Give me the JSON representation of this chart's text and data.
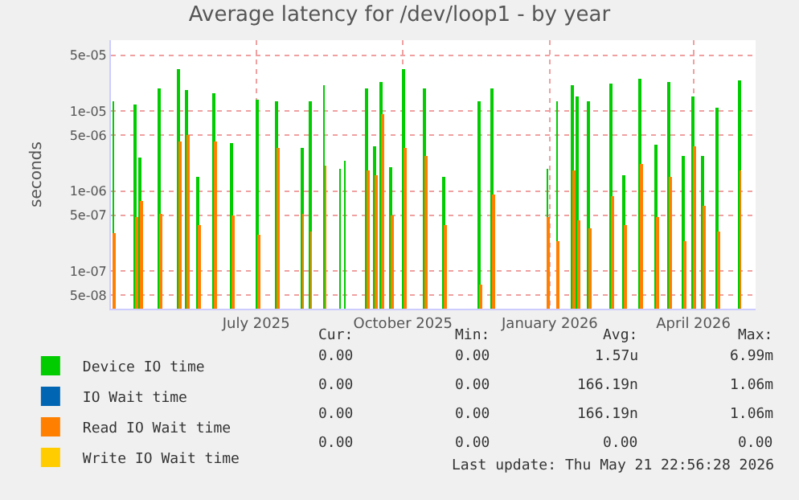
{
  "chart_data": {
    "type": "bar",
    "title": "Average latency for /dev/loop1 - by year",
    "ylabel": "seconds",
    "x": [
      "2025-04-03",
      "2025-04-17",
      "2025-04-20",
      "2025-05-02",
      "2025-05-14",
      "2025-05-19",
      "2025-05-26",
      "2025-06-05",
      "2025-06-16",
      "2025-07-02",
      "2025-07-14",
      "2025-07-30",
      "2025-08-04",
      "2025-08-13",
      "2025-08-23",
      "2025-08-26",
      "2025-09-09",
      "2025-09-14",
      "2025-09-18",
      "2025-09-24",
      "2025-10-02",
      "2025-10-15",
      "2025-10-27",
      "2025-11-18",
      "2025-11-26",
      "2025-12-31",
      "2026-01-06",
      "2026-01-16",
      "2026-01-19",
      "2026-01-26",
      "2026-02-09",
      "2026-02-17",
      "2026-02-27",
      "2026-03-09",
      "2026-03-17",
      "2026-03-26",
      "2026-04-01",
      "2026-04-07",
      "2026-04-16",
      "2026-04-30"
    ],
    "series": [
      {
        "name": "Device IO time",
        "color": "#00cc00",
        "values": [
          1.3e-05,
          1.2e-05,
          2.6e-06,
          1.9e-05,
          3.4e-05,
          1.8e-05,
          1.5e-06,
          1.7e-05,
          4e-06,
          1.4e-05,
          1.35e-05,
          3.5e-06,
          1.3e-05,
          2.1e-05,
          1.9e-06,
          2.4e-06,
          1.9e-05,
          3.7e-06,
          2.3e-05,
          2e-06,
          3.4e-05,
          1.9e-05,
          1.5e-06,
          1.3e-05,
          1.9e-05,
          1.9e-06,
          1.3e-05,
          2.1e-05,
          1.5e-05,
          1.3e-05,
          2.2e-05,
          1.6e-06,
          2.5e-05,
          3.8e-06,
          2.3e-05,
          2.7e-06,
          1.5e-05,
          2.7e-06,
          1.1e-05,
          2.4e-05
        ]
      },
      {
        "name": "IO Wait time",
        "color": "#0066b3",
        "values": [
          null,
          null,
          null,
          null,
          null,
          null,
          null,
          null,
          null,
          null,
          null,
          null,
          null,
          null,
          null,
          null,
          null,
          null,
          null,
          null,
          null,
          null,
          null,
          null,
          null,
          null,
          null,
          null,
          null,
          null,
          null,
          null,
          null,
          null,
          null,
          null,
          null,
          null,
          null,
          null
        ]
      },
      {
        "name": "Read IO Wait time",
        "color": "#ff8000",
        "values": [
          3e-07,
          4.8e-07,
          7.4e-07,
          5.2e-07,
          4.2e-06,
          5e-06,
          3.7e-07,
          4.2e-06,
          5e-07,
          2.8e-07,
          3.4e-06,
          5.2e-07,
          3.1e-07,
          2.1e-06,
          null,
          null,
          1.8e-06,
          1.6e-06,
          9.2e-06,
          5e-07,
          3.4e-06,
          2.7e-06,
          3.7e-07,
          6.8e-08,
          9e-07,
          4.8e-07,
          2.4e-07,
          1.8e-06,
          4.4e-07,
          3.4e-07,
          8.8e-07,
          3.8e-07,
          2.2e-06,
          4.8e-07,
          1.5e-06,
          2.4e-07,
          3.7e-06,
          6.5e-07,
          3.1e-07,
          1.8e-06
        ]
      },
      {
        "name": "Write IO Wait time",
        "color": "#ffcc00",
        "values": [
          null,
          null,
          null,
          null,
          null,
          null,
          null,
          null,
          null,
          null,
          null,
          null,
          null,
          null,
          null,
          null,
          null,
          null,
          null,
          null,
          null,
          null,
          null,
          null,
          null,
          null,
          null,
          null,
          null,
          null,
          null,
          null,
          null,
          null,
          null,
          null,
          null,
          null,
          null,
          null
        ]
      }
    ],
    "log": "y",
    "ylim": [
      3.4e-08,
      7.7e-05
    ],
    "yticks": [
      {
        "value": 5e-08,
        "label": "5e-08"
      },
      {
        "value": 1e-07,
        "label": "1e-07"
      },
      {
        "value": 5e-07,
        "label": "5e-07"
      },
      {
        "value": 1e-06,
        "label": "1e-06"
      },
      {
        "value": 5e-06,
        "label": "5e-06"
      },
      {
        "value": 1e-05,
        "label": "1e-05"
      },
      {
        "value": 5e-05,
        "label": "5e-05"
      }
    ],
    "xlim": [
      "2025-04-01",
      "2026-05-10"
    ],
    "xticks": [
      {
        "value": "2025-07-01",
        "label": "July 2025"
      },
      {
        "value": "2025-10-01",
        "label": "October 2025"
      },
      {
        "value": "2026-01-01",
        "label": "January 2026"
      },
      {
        "value": "2026-04-01",
        "label": "April 2026"
      }
    ],
    "grid": true,
    "legend": "bottom",
    "annotations": [
      "Cur:",
      "Min:",
      "Avg:",
      "Max:",
      "0.00",
      "0.00",
      "1.57u",
      "6.99m",
      "0.00",
      "0.00",
      "166.19n",
      "1.06m",
      "0.00",
      "0.00",
      "166.19n",
      "1.06m",
      "0.00",
      "0.00",
      "0.00",
      "0.00",
      "Last update: Thu May 21 22:56:28 2026"
    ]
  }
}
